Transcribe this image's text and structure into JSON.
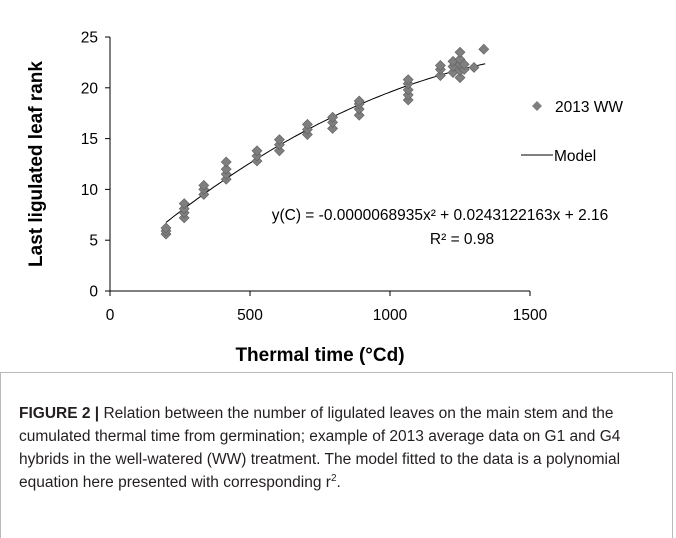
{
  "chart_data": {
    "type": "scatter",
    "xlabel": "Thermal time (°Cd)",
    "ylabel": "Last ligulated leaf rank",
    "xlim": [
      0,
      1500
    ],
    "ylim": [
      0,
      25
    ],
    "xticks": [
      0,
      500,
      1000,
      1500
    ],
    "yticks": [
      0,
      5,
      10,
      15,
      20,
      25
    ],
    "grid": false,
    "legend_position": "right",
    "series": [
      {
        "name": "2013 WW",
        "marker": "diamond",
        "color": "#7f7f7f",
        "points": [
          [
            200,
            5.6
          ],
          [
            200,
            5.9
          ],
          [
            200,
            6.2
          ],
          [
            265,
            7.2
          ],
          [
            265,
            7.7
          ],
          [
            265,
            8.1
          ],
          [
            265,
            8.6
          ],
          [
            335,
            9.5
          ],
          [
            335,
            10.0
          ],
          [
            335,
            10.4
          ],
          [
            415,
            11.0
          ],
          [
            415,
            11.5
          ],
          [
            415,
            12.0
          ],
          [
            415,
            12.7
          ],
          [
            525,
            12.8
          ],
          [
            525,
            13.3
          ],
          [
            525,
            13.8
          ],
          [
            605,
            13.8
          ],
          [
            605,
            14.4
          ],
          [
            605,
            14.9
          ],
          [
            705,
            15.4
          ],
          [
            705,
            15.9
          ],
          [
            705,
            16.4
          ],
          [
            795,
            16.0
          ],
          [
            795,
            16.6
          ],
          [
            795,
            17.1
          ],
          [
            890,
            17.3
          ],
          [
            890,
            17.9
          ],
          [
            890,
            18.4
          ],
          [
            890,
            18.7
          ],
          [
            1065,
            18.8
          ],
          [
            1065,
            19.3
          ],
          [
            1065,
            19.8
          ],
          [
            1065,
            20.4
          ],
          [
            1065,
            20.8
          ],
          [
            1180,
            21.2
          ],
          [
            1180,
            21.8
          ],
          [
            1180,
            22.2
          ],
          [
            1225,
            21.5
          ],
          [
            1225,
            22.1
          ],
          [
            1225,
            22.6
          ],
          [
            1250,
            21.0
          ],
          [
            1250,
            21.7
          ],
          [
            1250,
            22.3
          ],
          [
            1250,
            22.8
          ],
          [
            1250,
            23.5
          ],
          [
            1265,
            21.8
          ],
          [
            1265,
            22.3
          ],
          [
            1300,
            22.0
          ],
          [
            1335,
            23.8
          ]
        ]
      },
      {
        "name": "Model",
        "type": "line",
        "color": "#000000",
        "equation": {
          "a": -6.8935e-06,
          "b": 0.0243122163,
          "c": 2.16
        },
        "x_range": [
          200,
          1340
        ]
      }
    ],
    "annotations": [
      "y(C) = -0.0000068935x² + 0.0243122163x + 2.16",
      "R² = 0.98"
    ]
  },
  "caption": {
    "label": "FIGURE 2 |",
    "text_part1": " Relation between the number of ligulated leaves on the main stem and the cumulated thermal time from germination; example of 2013 average data on G1 and G4 hybrids in the well-watered (WW) treatment. The model fitted to the data is a polynomial equation here presented with corresponding r",
    "sup": "2",
    "text_part2": "."
  }
}
